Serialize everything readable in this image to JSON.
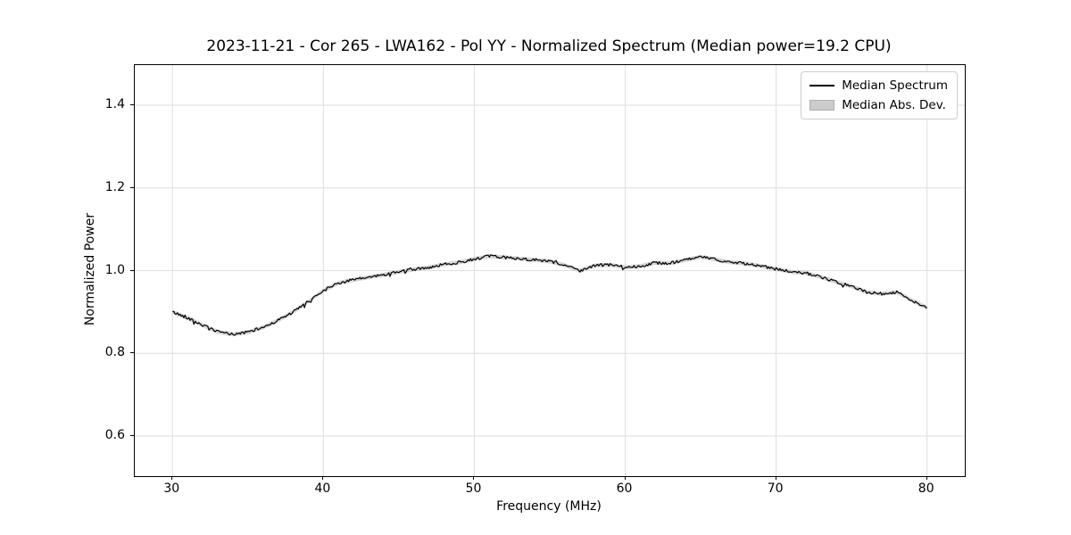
{
  "chart_data": {
    "type": "line",
    "title": "2023-11-21 - Cor 265 - LWA162 - Pol YY - Normalized Spectrum (Median power=19.2 CPU)",
    "xlabel": "Frequency (MHz)",
    "ylabel": "Normalized Power",
    "xlim": [
      27.5,
      82.5
    ],
    "ylim": [
      0.503,
      1.497
    ],
    "xticks": [
      30,
      40,
      50,
      60,
      70,
      80
    ],
    "yticks": [
      0.6,
      0.8,
      1.0,
      1.2,
      1.4
    ],
    "grid": true,
    "legend_position": "upper right",
    "legend": [
      {
        "label": "Median Spectrum",
        "type": "line",
        "color": "#000000"
      },
      {
        "label": "Median Abs. Dev.",
        "type": "patch",
        "color": "#cccccc"
      }
    ],
    "series": [
      {
        "name": "Median Spectrum",
        "x": [
          30,
          31,
          32,
          33,
          34,
          35,
          36,
          37,
          38,
          39,
          40,
          41,
          42,
          43,
          44,
          45,
          46,
          47,
          48,
          49,
          50,
          51,
          52,
          53,
          54,
          55,
          56,
          57,
          58,
          59,
          60,
          61,
          62,
          63,
          64,
          65,
          66,
          67,
          68,
          69,
          70,
          71,
          72,
          73,
          74,
          75,
          76,
          77,
          78,
          79,
          80
        ],
        "y": [
          0.9,
          0.886,
          0.868,
          0.852,
          0.846,
          0.851,
          0.863,
          0.88,
          0.9,
          0.925,
          0.952,
          0.97,
          0.978,
          0.984,
          0.99,
          0.997,
          1.003,
          1.008,
          1.015,
          1.02,
          1.028,
          1.035,
          1.032,
          1.029,
          1.026,
          1.022,
          1.013,
          1.0,
          1.012,
          1.014,
          1.008,
          1.011,
          1.019,
          1.018,
          1.026,
          1.033,
          1.027,
          1.02,
          1.017,
          1.011,
          1.004,
          0.997,
          0.994,
          0.984,
          0.972,
          0.962,
          0.948,
          0.944,
          0.948,
          0.928,
          0.91
        ]
      },
      {
        "name": "Median Abs. Dev.",
        "band_halfwidth": 0.005
      }
    ],
    "noise": {
      "seed": 42,
      "amplitude": 0.0035,
      "spike_prob": 0.06,
      "spike_amplitude": 0.009,
      "upsample": 12
    },
    "colors": {
      "line": "#000000",
      "band": "#c4c4c4",
      "grid": "#dedede",
      "spine": "#000000"
    }
  }
}
